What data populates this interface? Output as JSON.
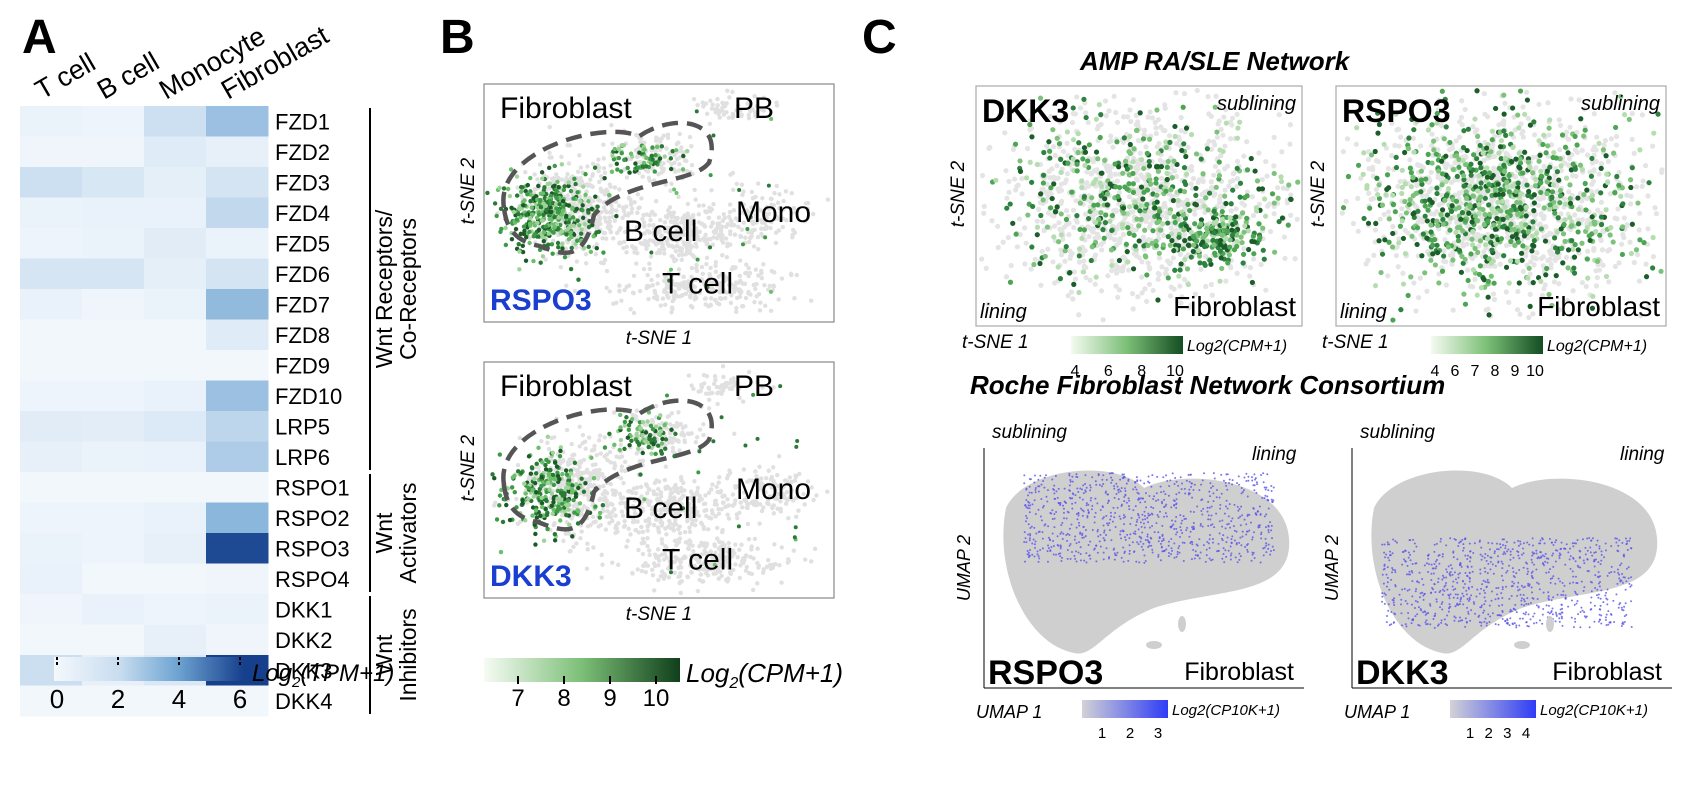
{
  "panelA": {
    "letter": "A",
    "columns": [
      "T cell",
      "B cell",
      "Monocyte",
      "Fibroblast"
    ],
    "genes": [
      "FZD1",
      "FZD2",
      "FZD3",
      "FZD4",
      "FZD5",
      "FZD6",
      "FZD7",
      "FZD8",
      "FZD9",
      "FZD10",
      "LRP5",
      "LRP6",
      "RSPO1",
      "RSPO2",
      "RSPO3",
      "RSPO4",
      "DKK1",
      "DKK2",
      "DKK3",
      "DKK4"
    ],
    "groups": [
      {
        "line1": "Wnt Receptors/",
        "line2": "Co-Receptors"
      },
      {
        "line1": "Wnt",
        "line2": "Activators"
      },
      {
        "line1": "Wnt",
        "line2": "Inhibitors"
      }
    ],
    "colorbar": {
      "label_main": "Log",
      "label_sub": "2",
      "label_rest": "(TPM+1)",
      "ticks": [
        "0",
        "2",
        "4",
        "6"
      ],
      "min": 0,
      "max": 6
    },
    "chart_data": {
      "type": "heatmap",
      "x": [
        "T cell",
        "B cell",
        "Monocyte",
        "Fibroblast"
      ],
      "y": [
        "FZD1",
        "FZD2",
        "FZD3",
        "FZD4",
        "FZD5",
        "FZD6",
        "FZD7",
        "FZD8",
        "FZD9",
        "FZD10",
        "LRP5",
        "LRP6",
        "RSPO1",
        "RSPO2",
        "RSPO3",
        "RSPO4",
        "DKK1",
        "DKK2",
        "DKK3",
        "DKK4"
      ],
      "values": [
        [
          0.4,
          0.3,
          1.8,
          3.0
        ],
        [
          0.2,
          0.2,
          1.0,
          0.6
        ],
        [
          1.8,
          1.3,
          0.7,
          1.5
        ],
        [
          0.4,
          0.5,
          0.5,
          2.2
        ],
        [
          0.3,
          0.4,
          0.9,
          0.4
        ],
        [
          1.4,
          1.4,
          0.7,
          1.5
        ],
        [
          0.5,
          0.2,
          0.4,
          3.2
        ],
        [
          0.1,
          0.1,
          0.1,
          1.0
        ],
        [
          0.1,
          0.1,
          0.1,
          0.1
        ],
        [
          0.3,
          0.3,
          0.5,
          3.0
        ],
        [
          0.9,
          0.8,
          1.1,
          2.3
        ],
        [
          0.6,
          0.4,
          0.5,
          2.6
        ],
        [
          0.1,
          0.1,
          0.1,
          0.1
        ],
        [
          0.3,
          0.3,
          0.5,
          3.3
        ],
        [
          0.4,
          0.3,
          0.6,
          5.8
        ],
        [
          0.5,
          0.1,
          0.1,
          0.2
        ],
        [
          0.2,
          0.5,
          0.3,
          0.4
        ],
        [
          0.1,
          0.1,
          0.6,
          0.2
        ],
        [
          1.9,
          0.6,
          1.2,
          6.0
        ],
        [
          0.1,
          0.1,
          0.1,
          0.1
        ]
      ],
      "zlim": [
        0,
        6
      ],
      "colorbar_ticks": [
        0,
        2,
        4,
        6
      ]
    }
  },
  "panelB": {
    "letter": "B",
    "plots": [
      {
        "gene": "RSPO3",
        "xlab": "t-SNE 1",
        "ylab": "t-SNE 2",
        "labels": {
          "fib": "Fibroblast",
          "pb": "PB",
          "bcell": "B cell",
          "tcell": "T cell",
          "mono": "Mono"
        }
      },
      {
        "gene": "DKK3",
        "xlab": "t-SNE 1",
        "ylab": "t-SNE 2",
        "labels": {
          "fib": "Fibroblast",
          "pb": "PB",
          "bcell": "B cell",
          "tcell": "T cell",
          "mono": "Mono"
        }
      }
    ],
    "colorbar": {
      "label_main": "Log",
      "label_sub": "2",
      "label_rest": "(CPM+1)",
      "ticks": [
        "7",
        "8",
        "9",
        "10"
      ]
    }
  },
  "panelC": {
    "letter": "C",
    "title_top": "AMP RA/SLE Network",
    "title_bottom": "Roche Fibroblast Network Consortium",
    "amp": [
      {
        "gene": "DKK3",
        "sublining": "sublining",
        "lining": "lining",
        "cell": "Fibroblast",
        "xlab": "t-SNE 1",
        "ylab": "t-SNE 2",
        "cb_label": "Log2(CPM+1)",
        "cb_ticks": [
          "4",
          "6",
          "8",
          "10"
        ]
      },
      {
        "gene": "RSPO3",
        "sublining": "sublining",
        "lining": "lining",
        "cell": "Fibroblast",
        "xlab": "t-SNE 1",
        "ylab": "t-SNE 2",
        "cb_label": "Log2(CPM+1)",
        "cb_ticks": [
          "4",
          "6",
          "7",
          "8",
          "9",
          "10"
        ]
      }
    ],
    "roche": [
      {
        "gene": "RSPO3",
        "sublining": "sublining",
        "lining": "lining",
        "cell": "Fibroblast",
        "xlab": "UMAP 1",
        "ylab": "UMAP 2",
        "cb_label": "Log2(CP10K+1)",
        "cb_ticks": [
          "1",
          "2",
          "3"
        ]
      },
      {
        "gene": "DKK3",
        "sublining": "sublining",
        "lining": "lining",
        "cell": "Fibroblast",
        "xlab": "UMAP 1",
        "ylab": "UMAP 2",
        "cb_label": "Log2(CP10K+1)",
        "cb_ticks": [
          "1",
          "2",
          "3",
          "4"
        ]
      }
    ]
  },
  "colors": {
    "heat_low": "#f4f8fd",
    "heat_high": "#1b4a97",
    "green_low": "#e8f4e4",
    "green_high": "#1b5e2a",
    "purple_low": "#d0d0d8",
    "purple_high": "#3a3af0",
    "gene_blue": "#1a3fd0",
    "grey_cell": "#d9d9d9"
  }
}
